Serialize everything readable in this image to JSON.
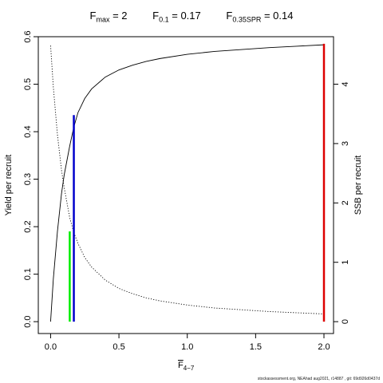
{
  "title": {
    "fmax_label": "F",
    "fmax_sub": "max",
    "fmax_value": " = 2",
    "f01_label": "F",
    "f01_sub": "0.1",
    "f01_value": " = 0.17",
    "fspr_label": "F",
    "fspr_sub": "0.35SPR",
    "fspr_value": " = 0.14"
  },
  "footer": "stockassessment.org,  NEAhad  aug2021,  r14887 ,  git:  69d926d0437d",
  "chart_data": {
    "type": "line",
    "xlabel_main": "F",
    "xlabel_sub": "4−7",
    "ylabel_left": "Yield per recruit",
    "ylabel_right": "SSB per recruit",
    "xlim": [
      0,
      2.1
    ],
    "ylim_left": [
      0,
      0.6
    ],
    "ylim_right": [
      0,
      4.8
    ],
    "x_ticks": [
      0.0,
      0.5,
      1.0,
      1.5,
      2.0
    ],
    "x_tick_labels": [
      "0.0",
      "0.5",
      "1.0",
      "1.5",
      "2.0"
    ],
    "y_left_ticks": [
      0.0,
      0.1,
      0.2,
      0.3,
      0.4,
      0.5,
      0.6
    ],
    "y_left_tick_labels": [
      "0.0",
      "0.1",
      "0.2",
      "0.3",
      "0.4",
      "0.5",
      "0.6"
    ],
    "y_right_ticks": [
      0,
      1,
      2,
      3,
      4
    ],
    "y_right_tick_labels": [
      "0",
      "1",
      "2",
      "3",
      "4"
    ],
    "series": [
      {
        "name": "Yield per recruit",
        "axis": "left",
        "style": "solid",
        "color": "#000000",
        "x": [
          0.0,
          0.02,
          0.05,
          0.08,
          0.1,
          0.14,
          0.17,
          0.2,
          0.25,
          0.3,
          0.4,
          0.5,
          0.6,
          0.7,
          0.8,
          1.0,
          1.2,
          1.4,
          1.6,
          1.8,
          2.0
        ],
        "y": [
          0.0,
          0.09,
          0.19,
          0.27,
          0.31,
          0.37,
          0.41,
          0.44,
          0.47,
          0.49,
          0.515,
          0.53,
          0.54,
          0.548,
          0.554,
          0.563,
          0.569,
          0.573,
          0.577,
          0.58,
          0.583
        ]
      },
      {
        "name": "SSB per recruit",
        "axis": "right",
        "style": "dotted",
        "color": "#000000",
        "x": [
          0.0,
          0.02,
          0.05,
          0.08,
          0.1,
          0.14,
          0.17,
          0.2,
          0.25,
          0.3,
          0.4,
          0.5,
          0.6,
          0.7,
          0.8,
          1.0,
          1.2,
          1.4,
          1.6,
          1.8,
          2.0
        ],
        "y": [
          4.65,
          3.95,
          3.15,
          2.55,
          2.25,
          1.75,
          1.5,
          1.32,
          1.08,
          0.92,
          0.7,
          0.56,
          0.47,
          0.4,
          0.35,
          0.28,
          0.23,
          0.2,
          0.17,
          0.15,
          0.13
        ]
      }
    ],
    "reference_lines": [
      {
        "name": "F0.35SPR",
        "x": 0.14,
        "y": 0.19,
        "color": "#00ee00"
      },
      {
        "name": "F0.1",
        "x": 0.17,
        "y": 0.435,
        "color": "#0000cc"
      },
      {
        "name": "Fmax",
        "x": 2.0,
        "y": 0.585,
        "color": "#dd0000"
      }
    ]
  }
}
